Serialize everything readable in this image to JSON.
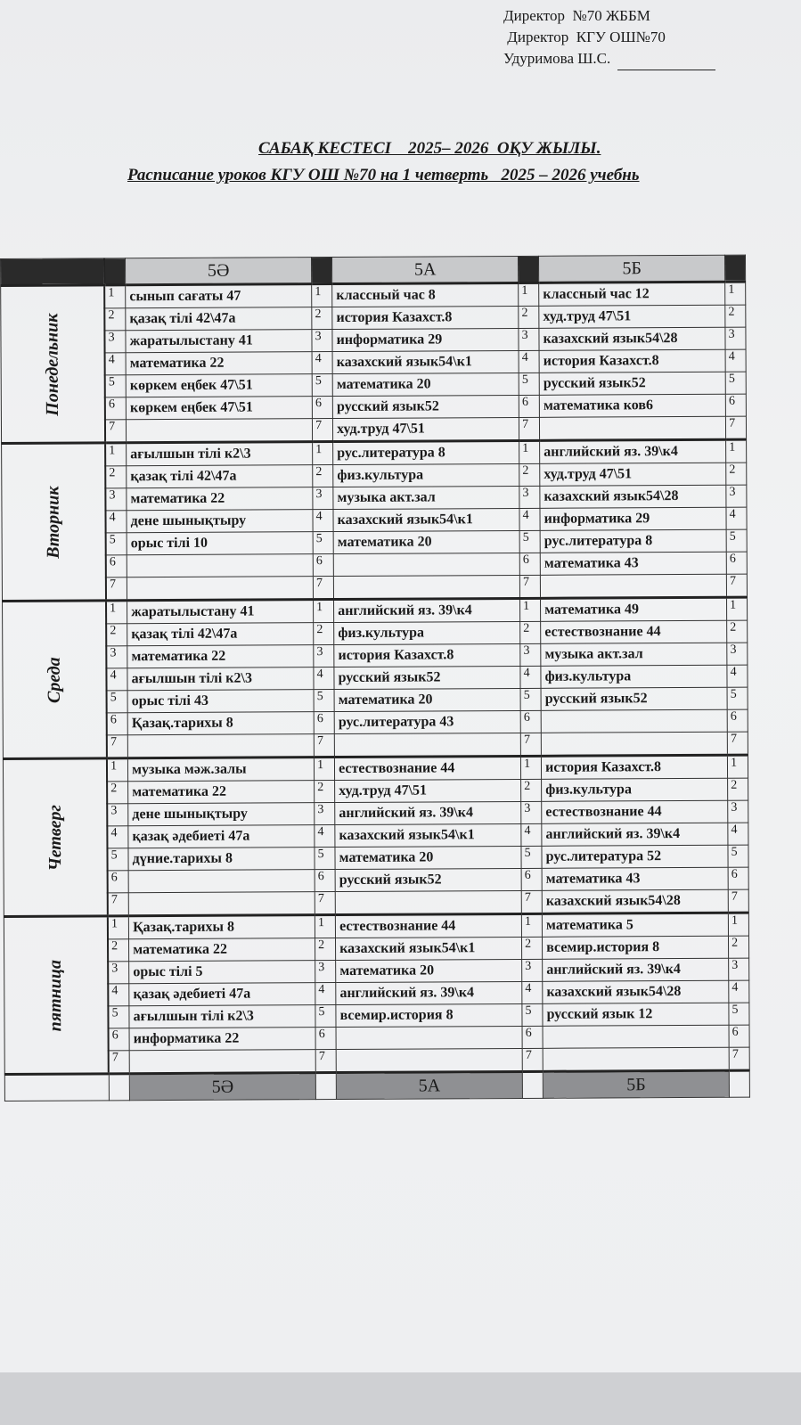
{
  "approval": {
    "line1": "Директор  №70 ЖББМ",
    "line2": " Директор  КГУ ОШ№70",
    "line3": "Удуримова Ш.С."
  },
  "titles": {
    "kazakh": "САБАҚ КЕСТЕСІ    2025– 2026  ОҚУ ЖЫЛЫ.",
    "russian": "Расписание уроков КГУ ОШ №70 на 1 четверть   2025 – 2026 учебнь"
  },
  "classes": [
    "5Ә",
    "5А",
    "5Б"
  ],
  "lesson_numbers": [
    "1",
    "2",
    "3",
    "4",
    "5",
    "6",
    "7"
  ],
  "days": [
    {
      "name": "Понедельник",
      "rows": [
        [
          "сынып сағаты 47",
          "классный час 8",
          "классный час 12"
        ],
        [
          "қазақ тілі 42\\47а",
          "история Казахст.8",
          "худ.труд 47\\51"
        ],
        [
          "жаратылыстану 41",
          "информатика 29",
          "казахский язык54\\28"
        ],
        [
          "математика 22",
          "казахский язык54\\к1",
          "история Казахст.8"
        ],
        [
          "көркем еңбек 47\\51",
          "математика 20",
          "русский язык52"
        ],
        [
          "көркем еңбек 47\\51",
          "русский язык52",
          "математика ков6"
        ],
        [
          "",
          "худ.труд 47\\51",
          ""
        ]
      ]
    },
    {
      "name": "Вторник",
      "rows": [
        [
          "ағылшын тілі к2\\3",
          "рус.литература 8",
          "английский яз. 39\\к4"
        ],
        [
          "қазақ тілі 42\\47а",
          "физ.культура",
          "худ.труд 47\\51"
        ],
        [
          "математика 22",
          "музыка акт.зал",
          "казахский язык54\\28"
        ],
        [
          "дене шынықтыру",
          "казахский язык54\\к1",
          "информатика 29"
        ],
        [
          "орыс тілі 10",
          "математика 20",
          "рус.литература 8"
        ],
        [
          "",
          "",
          "математика 43"
        ],
        [
          "",
          "",
          ""
        ]
      ]
    },
    {
      "name": "Среда",
      "rows": [
        [
          "жаратылыстану 41",
          "английский яз. 39\\к4",
          "математика 49"
        ],
        [
          "қазақ тілі 42\\47а",
          "физ.культура",
          "естествознание 44"
        ],
        [
          "математика 22",
          "история Казахст.8",
          "музыка акт.зал"
        ],
        [
          "ағылшын тілі к2\\3",
          "русский язык52",
          "физ.культура"
        ],
        [
          "орыс тілі 43",
          "математика 20",
          "русский язык52"
        ],
        [
          "Қазақ.тарихы 8",
          "рус.литература 43",
          ""
        ],
        [
          "",
          "",
          ""
        ]
      ]
    },
    {
      "name": "Четверг",
      "rows": [
        [
          "музыка мәж.залы",
          "естествознание 44",
          "история Казахст.8"
        ],
        [
          "математика 22",
          "худ.труд 47\\51",
          "физ.культура"
        ],
        [
          "дене шынықтыру",
          "английский яз. 39\\к4",
          "естествознание 44"
        ],
        [
          "қазақ әдебиеті 47а",
          "казахский язык54\\к1",
          "английский яз. 39\\к4"
        ],
        [
          "дүние.тарихы 8",
          "математика 20",
          "рус.литература 52"
        ],
        [
          "",
          "русский язык52",
          "математика 43"
        ],
        [
          "",
          "",
          "казахский язык54\\28"
        ]
      ]
    },
    {
      "name": "пятница",
      "rows": [
        [
          "Қазақ.тарихы 8",
          "естествознание 44",
          "математика 5"
        ],
        [
          "математика 22",
          "казахский язык54\\к1",
          "всемир.история 8"
        ],
        [
          "орыс тілі 5",
          "математика 20",
          "английский яз. 39\\к4"
        ],
        [
          "қазақ әдебиеті 47а",
          "английский яз. 39\\к4",
          "казахский язык54\\28"
        ],
        [
          "ағылшын тілі к2\\3",
          "всемир.история 8",
          "русский язык 12"
        ],
        [
          "информатика 22",
          "",
          ""
        ],
        [
          "",
          "",
          ""
        ]
      ]
    }
  ]
}
